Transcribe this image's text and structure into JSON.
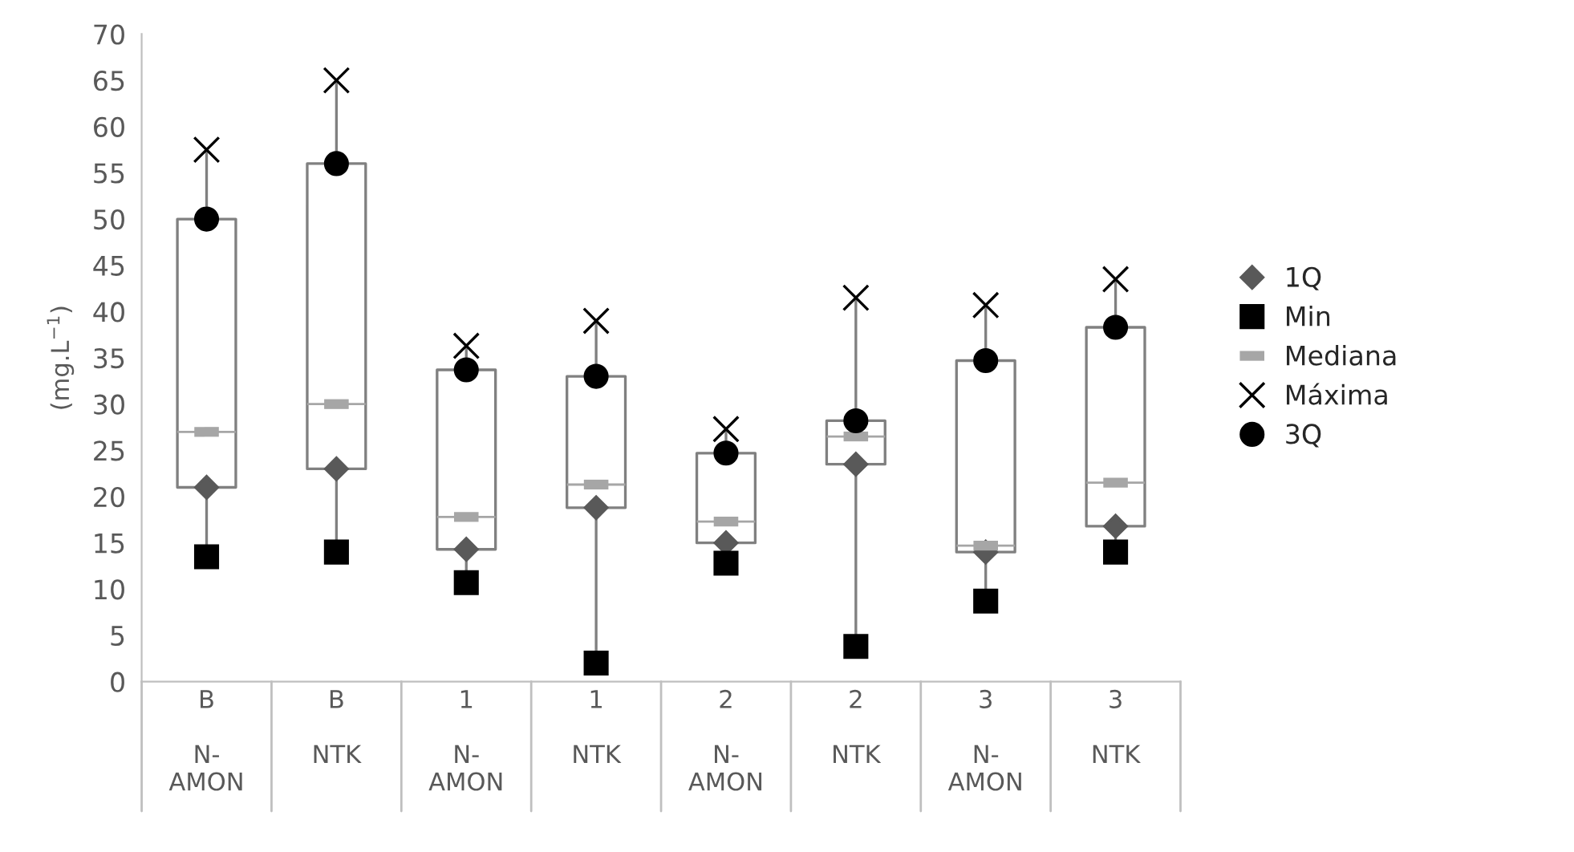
{
  "chart_data": {
    "type": "box",
    "ylabel": "(mg.L$^{−1}$)",
    "categories": [
      "B\n\nN-\nAMON",
      "B\n\nNTK",
      "1\n\nN-\nAMON",
      "1\n\nNTK",
      "2\n\nN-\nAMON",
      "2\n\nNTK",
      "3\n\nN-\nAMON",
      "3\n\nNTK"
    ],
    "boxes": [
      {
        "low": 13.5,
        "q1": 21,
        "median": 27,
        "q3": 50,
        "high": 57.5
      },
      {
        "low": 14,
        "q1": 23,
        "median": 30,
        "q3": 56,
        "high": 65
      },
      {
        "low": 10.7,
        "q1": 14.3,
        "median": 17.8,
        "q3": 33.7,
        "high": 36.3
      },
      {
        "low": 2,
        "q1": 18.8,
        "median": 21.3,
        "q3": 33,
        "high": 39
      },
      {
        "low": 12.8,
        "q1": 15,
        "median": 17.3,
        "q3": 24.7,
        "high": 27.3
      },
      {
        "low": 3.8,
        "q1": 23.5,
        "median": 26.5,
        "q3": 28.2,
        "high": 41.5
      },
      {
        "low": 8.7,
        "q1": 14,
        "median": 14.7,
        "q3": 34.7,
        "high": 40.7
      },
      {
        "low": 14,
        "q1": 16.8,
        "median": 21.5,
        "q3": 38.3,
        "high": 43.5
      }
    ],
    "series": [
      {
        "name": "1Q",
        "type": "scatter",
        "marker": "diamond",
        "color": "#595959",
        "values": [
          21,
          23,
          14.3,
          18.8,
          15,
          23.5,
          14,
          16.8
        ]
      },
      {
        "name": "Min",
        "type": "scatter",
        "marker": "square",
        "color": "#000000",
        "values": [
          13.5,
          14,
          10.7,
          2,
          12.8,
          3.8,
          8.7,
          14
        ]
      },
      {
        "name": "Mediana",
        "type": "scatter",
        "color": "#a6a6a6",
        "values": [
          27,
          30,
          17.8,
          21.3,
          17.3,
          26.5,
          14.7,
          21.5
        ]
      },
      {
        "name": "Máxima",
        "type": "scatter",
        "marker": "cross",
        "color": "#000000",
        "values": [
          57.5,
          65,
          36.3,
          39,
          27.3,
          41.5,
          40.7,
          43.5
        ]
      },
      {
        "name": "3Q",
        "type": "scatter",
        "marker": "circle",
        "color": "#000000",
        "values": [
          50,
          56,
          33.7,
          33,
          24.7,
          28.2,
          34.7,
          38.3
        ]
      }
    ],
    "ylim": [
      0,
      70
    ],
    "yticks": [
      0,
      5,
      10,
      15,
      20,
      25,
      30,
      35,
      40,
      45,
      50,
      55,
      60,
      65,
      70
    ],
    "grid": false,
    "legend": "right"
  }
}
